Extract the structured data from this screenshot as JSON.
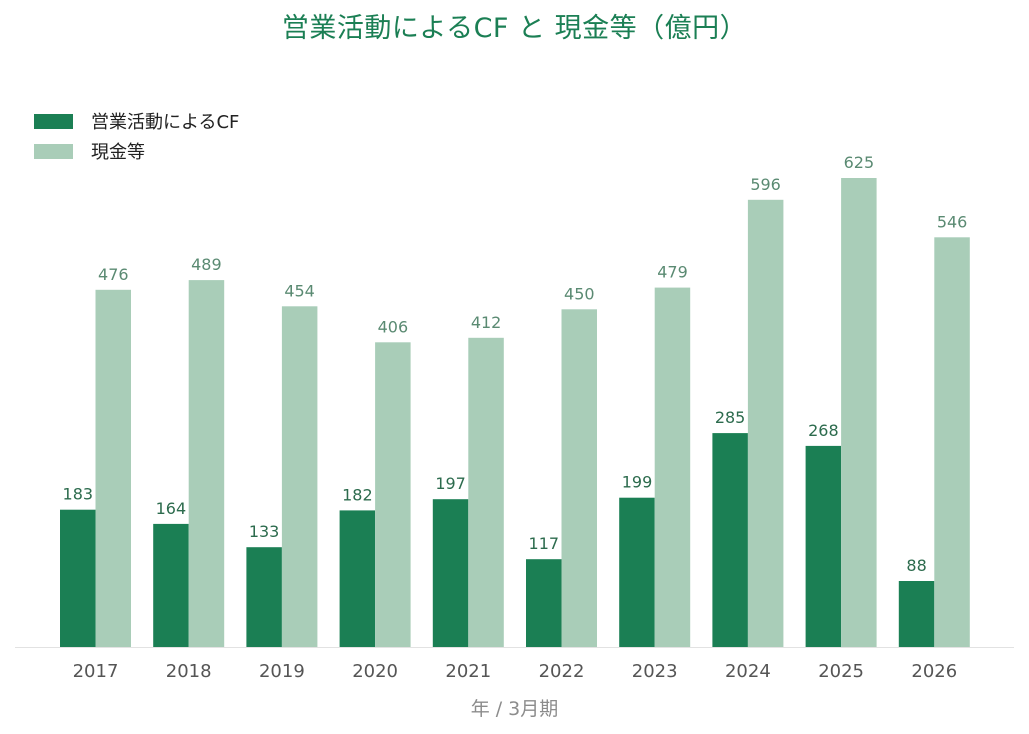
{
  "chart_data": {
    "type": "bar",
    "title": "営業活動によるCF と 現金等（億円）",
    "xlabel": "年 / 3月期",
    "ylabel": "",
    "categories": [
      "2017",
      "2018",
      "2019",
      "2020",
      "2021",
      "2022",
      "2023",
      "2024",
      "2025",
      "2026"
    ],
    "series": [
      {
        "name": "営業活動によるCF",
        "color": "#1b7f54",
        "values": [
          183,
          164,
          133,
          182,
          197,
          117,
          199,
          285,
          268,
          88
        ]
      },
      {
        "name": "現金等",
        "color": "#a9cdb8",
        "values": [
          476,
          489,
          454,
          406,
          412,
          450,
          479,
          596,
          625,
          546
        ]
      }
    ],
    "ylim": [
      0,
      625
    ],
    "grid": false,
    "legend_position": "top-left",
    "data_labels": true
  }
}
